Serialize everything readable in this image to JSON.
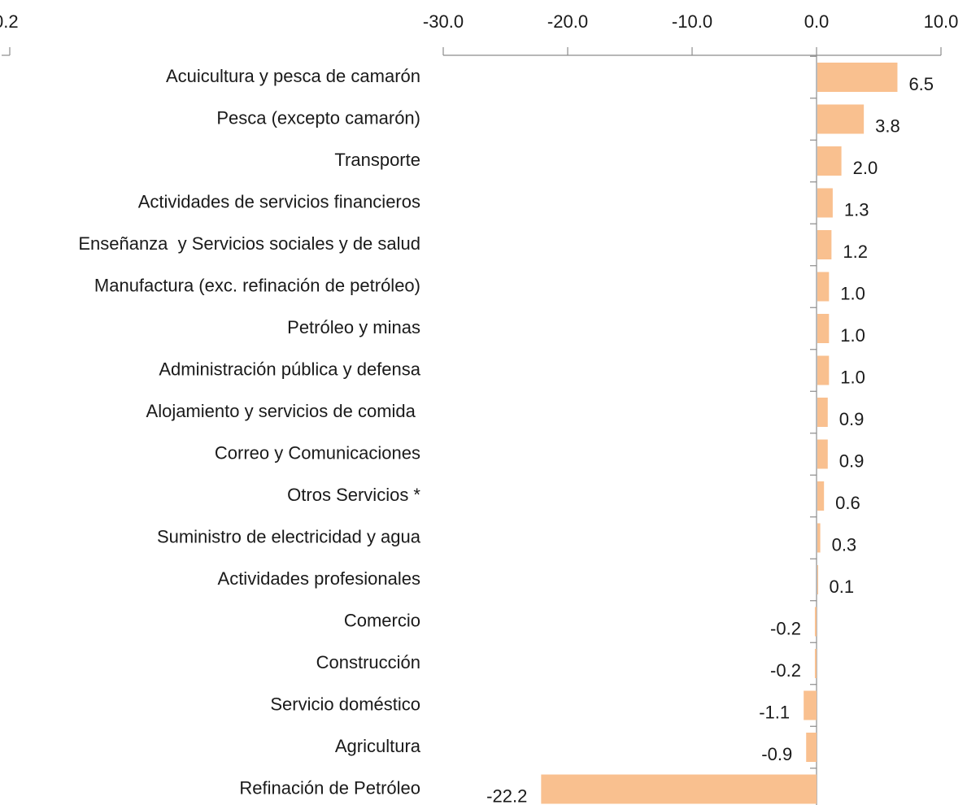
{
  "fragment_label": "0.2",
  "chart_data": {
    "type": "barh",
    "categories": [
      "Acuicultura y pesca de camarón",
      "Pesca (excepto camarón)",
      "Transporte",
      "Actividades de servicios financieros",
      "Enseñanza  y Servicios sociales y de salud",
      "Manufactura (exc. refinación de petróleo)",
      "Petróleo y minas",
      "Administración pública y defensa",
      "Alojamiento y servicios de comida ",
      "Correo y Comunicaciones",
      "Otros Servicios *",
      "Suministro de electricidad y agua",
      "Actividades profesionales",
      "Comercio",
      "Construcción",
      "Servicio doméstico",
      "Agricultura",
      "Refinación de Petróleo"
    ],
    "values": [
      6.5,
      3.8,
      2.0,
      1.3,
      1.2,
      1.0,
      1.0,
      1.0,
      0.9,
      0.9,
      0.6,
      0.3,
      0.1,
      -0.2,
      -0.2,
      -1.1,
      -0.9,
      -22.2
    ],
    "value_labels": [
      "6.5",
      "3.8",
      "2.0",
      "1.3",
      "1.2",
      "1.0",
      "1.0",
      "1.0",
      "0.9",
      "0.9",
      "0.6",
      "0.3",
      "0.1",
      "-0.2",
      "-0.2",
      "-1.1",
      "-0.9",
      "-22.2"
    ],
    "color": "#f9c08f",
    "xlim": [
      -30,
      10
    ],
    "xticks": [
      {
        "value": -30,
        "label": "-30.0"
      },
      {
        "value": -20,
        "label": "-20.0"
      },
      {
        "value": -10,
        "label": "-10.0"
      },
      {
        "value": 0,
        "label": "0.0"
      },
      {
        "value": 10,
        "label": "10.0"
      }
    ],
    "grid": false
  }
}
